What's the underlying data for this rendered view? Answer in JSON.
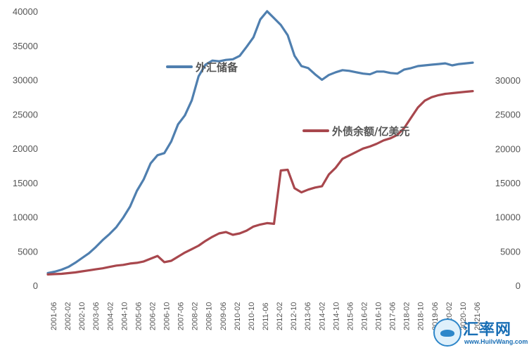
{
  "chart_data": {
    "type": "line",
    "title": "",
    "xlabel": "",
    "ylabel": "",
    "x_ticks": [
      "2001-06",
      "2002-02",
      "2002-10",
      "2003-06",
      "2004-02",
      "2004-10",
      "2005-06",
      "2006-02",
      "2006-10",
      "2007-06",
      "2008-02",
      "2008-10",
      "2009-06",
      "2010-02",
      "2010-10",
      "2011-06",
      "2012-02",
      "2012-10",
      "2013-06",
      "2014-02",
      "2014-10",
      "2015-06",
      "2016-02",
      "2016-10",
      "2017-06",
      "2018-02",
      "2018-10",
      "2019-06",
      "2020-02",
      "2020-10",
      "2021-06"
    ],
    "y_left": {
      "ylim": [
        0,
        40000
      ],
      "ticks": [
        "0",
        "5000",
        "10000",
        "15000",
        "20000",
        "25000",
        "30000",
        "35000",
        "40000"
      ]
    },
    "y_right": {
      "ylim": [
        0,
        30000
      ],
      "ticks": [
        "0",
        "5000",
        "10000",
        "15000",
        "20000",
        "25000",
        "30000"
      ]
    },
    "legend": [
      {
        "name": "外汇储备",
        "color": "#4f7faf"
      },
      {
        "name": "外债余额/亿美元",
        "color": "#a8474d"
      }
    ],
    "series": [
      {
        "name": "外汇储备",
        "axis": "left",
        "color": "#4f7faf",
        "x": [
          0,
          1,
          2,
          3,
          4,
          5,
          6,
          7,
          8,
          9,
          10,
          11,
          12,
          13,
          14,
          15,
          16,
          17,
          18,
          19,
          20,
          21,
          22,
          23,
          24,
          25,
          26,
          27,
          28,
          29,
          30,
          31,
          32,
          33,
          34,
          35,
          36,
          37,
          38,
          39,
          40,
          41,
          42,
          43,
          44,
          45,
          46,
          47,
          48,
          49,
          50,
          51,
          52,
          53,
          54,
          55,
          56,
          57,
          58,
          59,
          60,
          61,
          62
        ],
        "values": [
          1800,
          2000,
          2300,
          2700,
          3300,
          4000,
          4700,
          5600,
          6600,
          7500,
          8500,
          9900,
          11500,
          13800,
          15500,
          17800,
          19000,
          19300,
          21000,
          23500,
          24800,
          27000,
          30500,
          32200,
          32800,
          32700,
          32900,
          33000,
          33500,
          34800,
          36200,
          38800,
          40000,
          39000,
          38000,
          36500,
          33500,
          32000,
          31700,
          30800,
          30000,
          30700,
          31100,
          31400,
          31300,
          31100,
          30900,
          30800,
          31200,
          31200,
          31000,
          30900,
          31500,
          31700,
          32000,
          32100,
          32200,
          32300,
          32400,
          32100,
          32300,
          32400,
          32500
        ],
        "note": "x is the position index along the time axis, two steps per labeled tick"
      },
      {
        "name": "外债余额/亿美元",
        "axis": "right",
        "color": "#a8474d",
        "x": [
          0,
          1,
          2,
          3,
          4,
          5,
          6,
          7,
          8,
          9,
          10,
          11,
          12,
          13,
          14,
          15,
          16,
          17,
          18,
          19,
          20,
          21,
          22,
          23,
          24,
          25,
          26,
          27,
          28,
          29,
          30,
          31,
          32,
          33,
          34,
          35,
          36,
          37,
          38,
          39,
          40,
          41,
          42,
          43,
          44,
          45,
          46,
          47,
          48,
          49,
          50,
          51,
          52,
          53,
          54,
          55,
          56,
          57,
          58,
          59,
          60,
          61,
          62
        ],
        "values": [
          1600,
          1650,
          1700,
          1800,
          1900,
          2050,
          2200,
          2350,
          2500,
          2700,
          2900,
          3000,
          3200,
          3300,
          3500,
          3900,
          4300,
          3400,
          3600,
          4200,
          4800,
          5300,
          5800,
          6500,
          7100,
          7600,
          7800,
          7400,
          7600,
          8000,
          8600,
          8900,
          9100,
          9000,
          16800,
          16900,
          14200,
          13600,
          14000,
          14300,
          14500,
          16200,
          17200,
          18500,
          19000,
          19500,
          20000,
          20300,
          20700,
          21200,
          21500,
          22000,
          23000,
          24500,
          26000,
          27000,
          27500,
          27800,
          28000,
          28100,
          28200,
          28300,
          28400
        ]
      }
    ]
  },
  "watermark": {
    "title": "汇率网",
    "url": "www.HuilvWang.com"
  }
}
